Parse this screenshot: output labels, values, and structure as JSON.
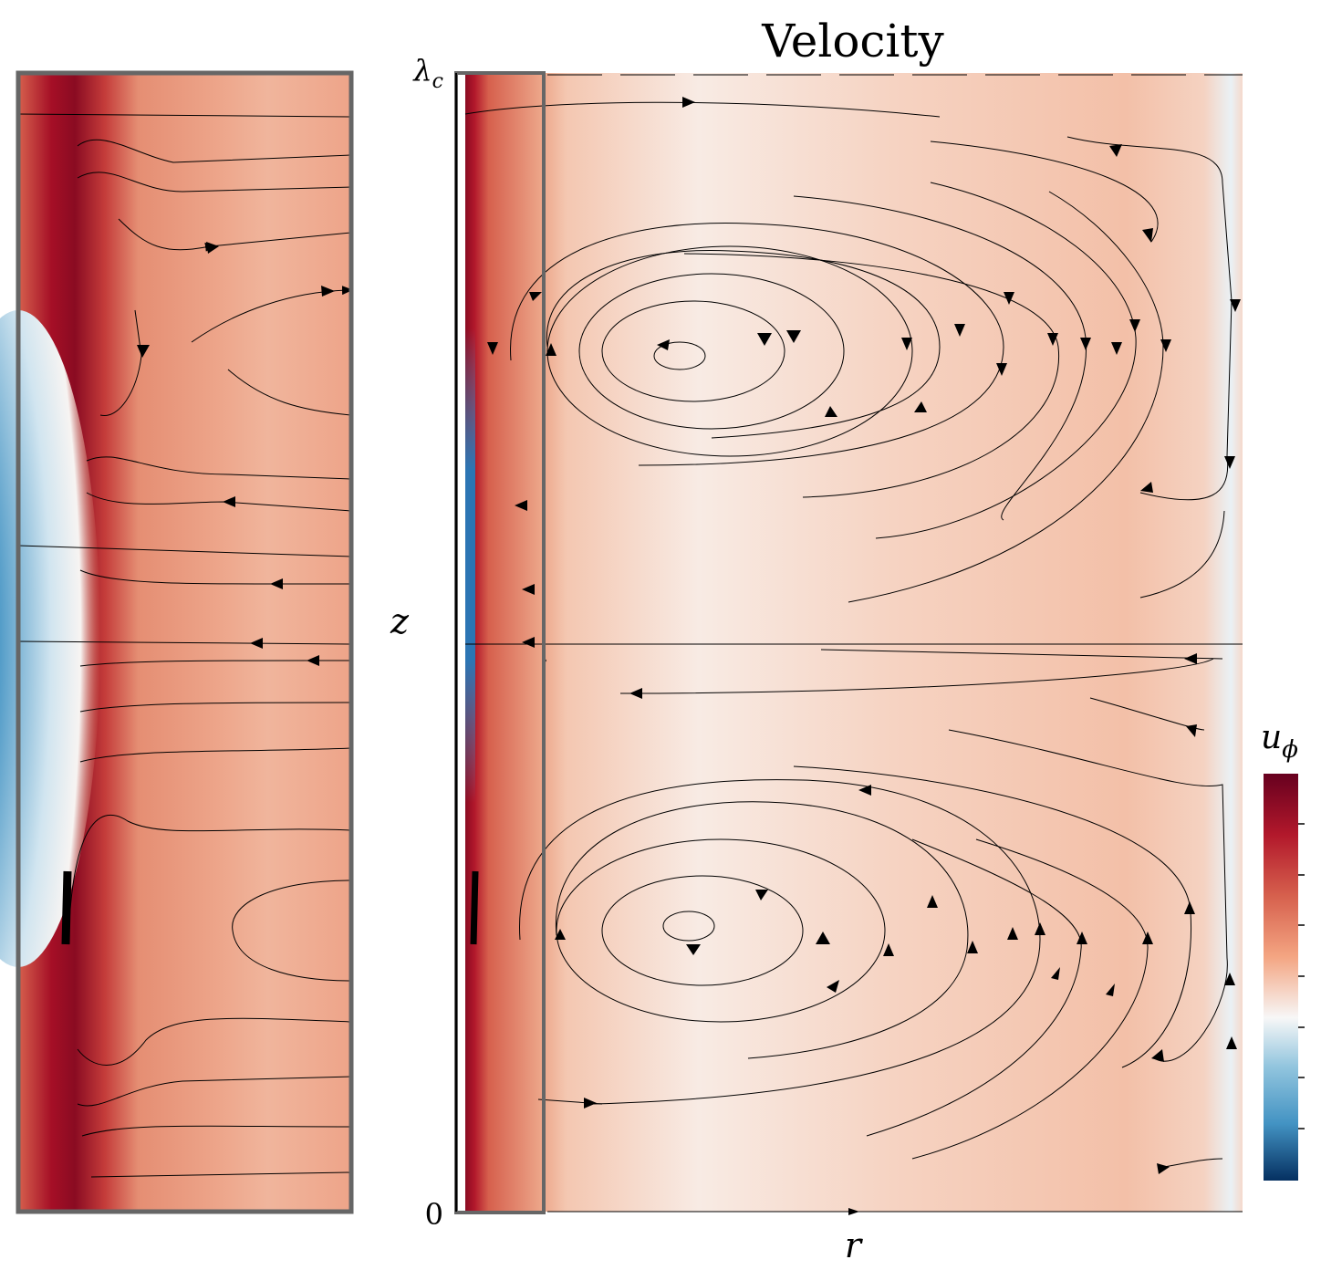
{
  "chart_data": {
    "type": "streamplot",
    "title": "Velocity",
    "x_label": "r",
    "y_label": "z",
    "y_tick_labels": [
      {
        "symbol": "λ",
        "subscript": "c"
      },
      {
        "symbol": "0"
      }
    ],
    "colorbar_label": {
      "symbol": "u",
      "subscript": "ϕ"
    }
  }
}
